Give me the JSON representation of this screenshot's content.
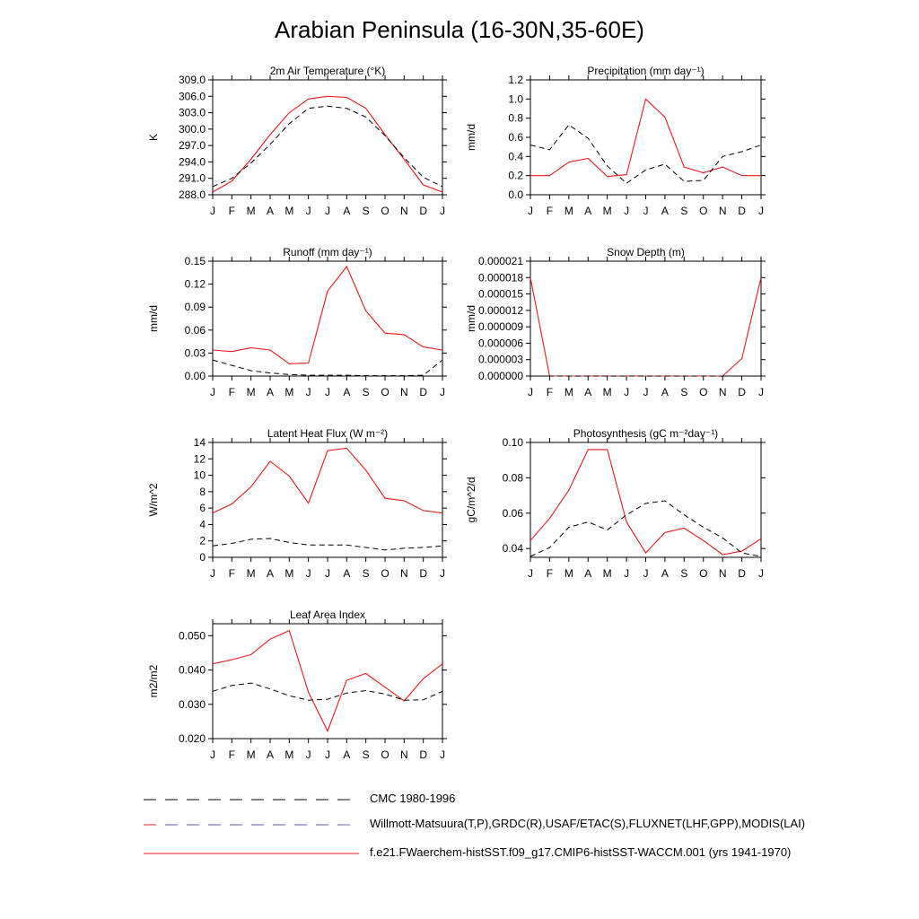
{
  "page": {
    "title": "Arabian Peninsula (16-30N,35-60E)"
  },
  "colors": {
    "model": "#e41a1c",
    "obs": "#000000",
    "obs2": "#555599"
  },
  "chart_data": [
    {
      "type": "line",
      "title": "2m Air Temperature (°K)",
      "ylabel": "K",
      "ylim": [
        288.0,
        309.0
      ],
      "yticks": [
        "288.0",
        "291.0",
        "294.0",
        "297.0",
        "300.0",
        "303.0",
        "306.0",
        "309.0"
      ],
      "categories": [
        "J",
        "F",
        "M",
        "A",
        "M",
        "J",
        "J",
        "A",
        "S",
        "O",
        "N",
        "D",
        "J"
      ],
      "series": [
        {
          "name": "f.e21.FWaerchem-histSST.f09_g17.CMIP6-histSST-WACCM.001 (yrs 1941-1970)",
          "style": "solid",
          "values": [
            288.5,
            290.5,
            294.5,
            299.0,
            303.0,
            305.5,
            306.0,
            305.8,
            303.8,
            299.0,
            294.5,
            289.8,
            288.5
          ]
        },
        {
          "name": "Willmott-Matsuura(T,P),GRDC(R),USAF/ETAC(S),FLUXNET(LHF,GPP),MODIS(LAI)",
          "style": "dashed",
          "values": [
            289.5,
            291.0,
            293.8,
            297.2,
            301.0,
            303.8,
            304.2,
            303.8,
            302.2,
            298.8,
            294.8,
            291.2,
            289.5
          ]
        }
      ]
    },
    {
      "type": "line",
      "title": "Precipitation (mm day⁻¹)",
      "ylabel": "mm/d",
      "ylim": [
        0.0,
        1.2
      ],
      "yticks": [
        "0.0",
        "0.2",
        "0.4",
        "0.6",
        "0.8",
        "1.0",
        "1.2"
      ],
      "categories": [
        "J",
        "F",
        "M",
        "A",
        "M",
        "J",
        "J",
        "A",
        "S",
        "O",
        "N",
        "D",
        "J"
      ],
      "series": [
        {
          "name": "f.e21.FWaerchem-histSST.f09_g17.CMIP6-histSST-WACCM.001 (yrs 1941-1970)",
          "style": "solid",
          "values": [
            0.2,
            0.2,
            0.34,
            0.38,
            0.19,
            0.21,
            1.0,
            0.81,
            0.29,
            0.23,
            0.29,
            0.2,
            0.2
          ]
        },
        {
          "name": "Willmott-Matsuura(T,P),GRDC(R),USAF/ETAC(S),FLUXNET(LHF,GPP),MODIS(LAI)",
          "style": "dashed",
          "values": [
            0.52,
            0.47,
            0.73,
            0.59,
            0.3,
            0.12,
            0.26,
            0.32,
            0.14,
            0.15,
            0.4,
            0.45,
            0.52
          ]
        }
      ]
    },
    {
      "type": "line",
      "title": "Runoff (mm day⁻¹)",
      "ylabel": "mm/d",
      "ylim": [
        0.0,
        0.15
      ],
      "yticks": [
        "0.00",
        "0.03",
        "0.06",
        "0.09",
        "0.12",
        "0.15"
      ],
      "categories": [
        "J",
        "F",
        "M",
        "A",
        "M",
        "J",
        "J",
        "A",
        "S",
        "O",
        "N",
        "D",
        "J"
      ],
      "series": [
        {
          "name": "f.e21.FWaerchem-histSST.f09_g17.CMIP6-histSST-WACCM.001 (yrs 1941-1970)",
          "style": "solid",
          "values": [
            0.034,
            0.032,
            0.037,
            0.034,
            0.016,
            0.017,
            0.111,
            0.143,
            0.085,
            0.056,
            0.054,
            0.038,
            0.034
          ]
        },
        {
          "name": "Willmott-Matsuura(T,P),GRDC(R),USAF/ETAC(S),FLUXNET(LHF,GPP),MODIS(LAI)",
          "style": "dashed",
          "values": [
            0.021,
            0.014,
            0.007,
            0.004,
            0.002,
            0.001,
            0.001,
            0.001,
            0.0005,
            0.0005,
            0.0005,
            0.001,
            0.021
          ]
        }
      ]
    },
    {
      "type": "line",
      "title": "Snow Depth (m)",
      "ylabel": "mm/d",
      "ylim": [
        0.0,
        2.1e-05
      ],
      "yticks": [
        "0.000000",
        "0.000003",
        "0.000006",
        "0.000009",
        "0.000012",
        "0.000015",
        "0.000018",
        "0.000021"
      ],
      "categories": [
        "J",
        "F",
        "M",
        "A",
        "M",
        "J",
        "J",
        "A",
        "S",
        "O",
        "N",
        "D",
        "J"
      ],
      "series": [
        {
          "name": "f.e21.FWaerchem-histSST.f09_g17.CMIP6-histSST-WACCM.001 (yrs 1941-1970)",
          "style": "solid",
          "values": [
            1.8e-05,
            0.0,
            0.0,
            0.0,
            0.0,
            0.0,
            0.0,
            0.0,
            0.0,
            0.0,
            0.0,
            3.2e-06,
            1.8e-05
          ]
        },
        {
          "name": "CMC 1980-1996",
          "style": "dashed",
          "values": [
            0.0,
            0.0,
            0.0,
            0.0,
            0.0,
            0.0,
            0.0,
            0.0,
            0.0,
            0.0,
            0.0,
            0.0,
            0.0
          ]
        }
      ]
    },
    {
      "type": "line",
      "title": "Latent Heat Flux (W m⁻²)",
      "ylabel": "W/m^2",
      "ylim": [
        0,
        14
      ],
      "yticks": [
        "0",
        "2",
        "4",
        "6",
        "8",
        "10",
        "12",
        "14"
      ],
      "categories": [
        "J",
        "F",
        "M",
        "A",
        "M",
        "J",
        "J",
        "A",
        "S",
        "O",
        "N",
        "D",
        "J"
      ],
      "series": [
        {
          "name": "f.e21.FWaerchem-histSST.f09_g17.CMIP6-histSST-WACCM.001 (yrs 1941-1970)",
          "style": "solid",
          "values": [
            5.4,
            6.5,
            8.6,
            11.7,
            9.9,
            6.6,
            13.0,
            13.3,
            10.6,
            7.2,
            6.9,
            5.7,
            5.4
          ]
        },
        {
          "name": "Willmott-Matsuura(T,P),GRDC(R),USAF/ETAC(S),FLUXNET(LHF,GPP),MODIS(LAI)",
          "style": "dashed",
          "values": [
            1.4,
            1.7,
            2.2,
            2.3,
            1.8,
            1.5,
            1.5,
            1.5,
            1.2,
            0.9,
            1.1,
            1.2,
            1.4
          ]
        }
      ]
    },
    {
      "type": "line",
      "title": "Photosynthesis (gC m⁻²day⁻¹)",
      "ylabel": "gC/m^2/d",
      "ylim": [
        0.035,
        0.1
      ],
      "yticks": [
        "0.04",
        "0.06",
        "0.08",
        "0.10"
      ],
      "ytickvals": [
        0.04,
        0.06,
        0.08,
        0.1
      ],
      "categories": [
        "J",
        "F",
        "M",
        "A",
        "M",
        "J",
        "J",
        "A",
        "S",
        "O",
        "N",
        "D",
        "J"
      ],
      "series": [
        {
          "name": "f.e21.FWaerchem-histSST.f09_g17.CMIP6-histSST-WACCM.001 (yrs 1941-1970)",
          "style": "solid",
          "values": [
            0.0445,
            0.057,
            0.073,
            0.096,
            0.096,
            0.055,
            0.0375,
            0.049,
            0.0515,
            0.0445,
            0.0365,
            0.0385,
            0.0455
          ]
        },
        {
          "name": "Willmott-Matsuura(T,P),GRDC(R),USAF/ETAC(S),FLUXNET(LHF,GPP),MODIS(LAI)",
          "style": "dashed",
          "values": [
            0.0355,
            0.0405,
            0.052,
            0.055,
            0.0505,
            0.059,
            0.0655,
            0.067,
            0.059,
            0.052,
            0.046,
            0.0375,
            0.0355
          ]
        }
      ]
    },
    {
      "type": "line",
      "title": "Leaf Area Index",
      "ylabel": "m2/m2",
      "ylim": [
        0.02,
        0.0535
      ],
      "yticks": [
        "0.020",
        "0.030",
        "0.040",
        "0.050"
      ],
      "ytickvals": [
        0.02,
        0.03,
        0.04,
        0.05
      ],
      "categories": [
        "J",
        "F",
        "M",
        "A",
        "M",
        "J",
        "J",
        "A",
        "S",
        "O",
        "N",
        "D",
        "J"
      ],
      "series": [
        {
          "name": "f.e21.FWaerchem-histSST.f09_g17.CMIP6-histSST-WACCM.001 (yrs 1941-1970)",
          "style": "solid",
          "values": [
            0.0418,
            0.043,
            0.0445,
            0.049,
            0.0515,
            0.0335,
            0.0222,
            0.037,
            0.039,
            0.035,
            0.031,
            0.0375,
            0.0418
          ]
        },
        {
          "name": "Willmott-Matsuura(T,P),GRDC(R),USAF/ETAC(S),FLUXNET(LHF,GPP),MODIS(LAI)",
          "style": "dashed",
          "values": [
            0.0338,
            0.0355,
            0.0362,
            0.0345,
            0.0325,
            0.0312,
            0.0315,
            0.0333,
            0.034,
            0.033,
            0.0312,
            0.0313,
            0.0338
          ]
        }
      ]
    }
  ],
  "legend": {
    "items": [
      {
        "label": "CMC 1980-1996",
        "style": "dashed-black"
      },
      {
        "label": "Willmott-Matsuura(T,P),GRDC(R),USAF/ETAC(S),FLUXNET(LHF,GPP),MODIS(LAI)",
        "style": "dashed-multi"
      },
      {
        "label": "f.e21.FWaerchem-histSST.f09_g17.CMIP6-histSST-WACCM.001 (yrs 1941-1970)",
        "style": "solid-red"
      }
    ]
  }
}
